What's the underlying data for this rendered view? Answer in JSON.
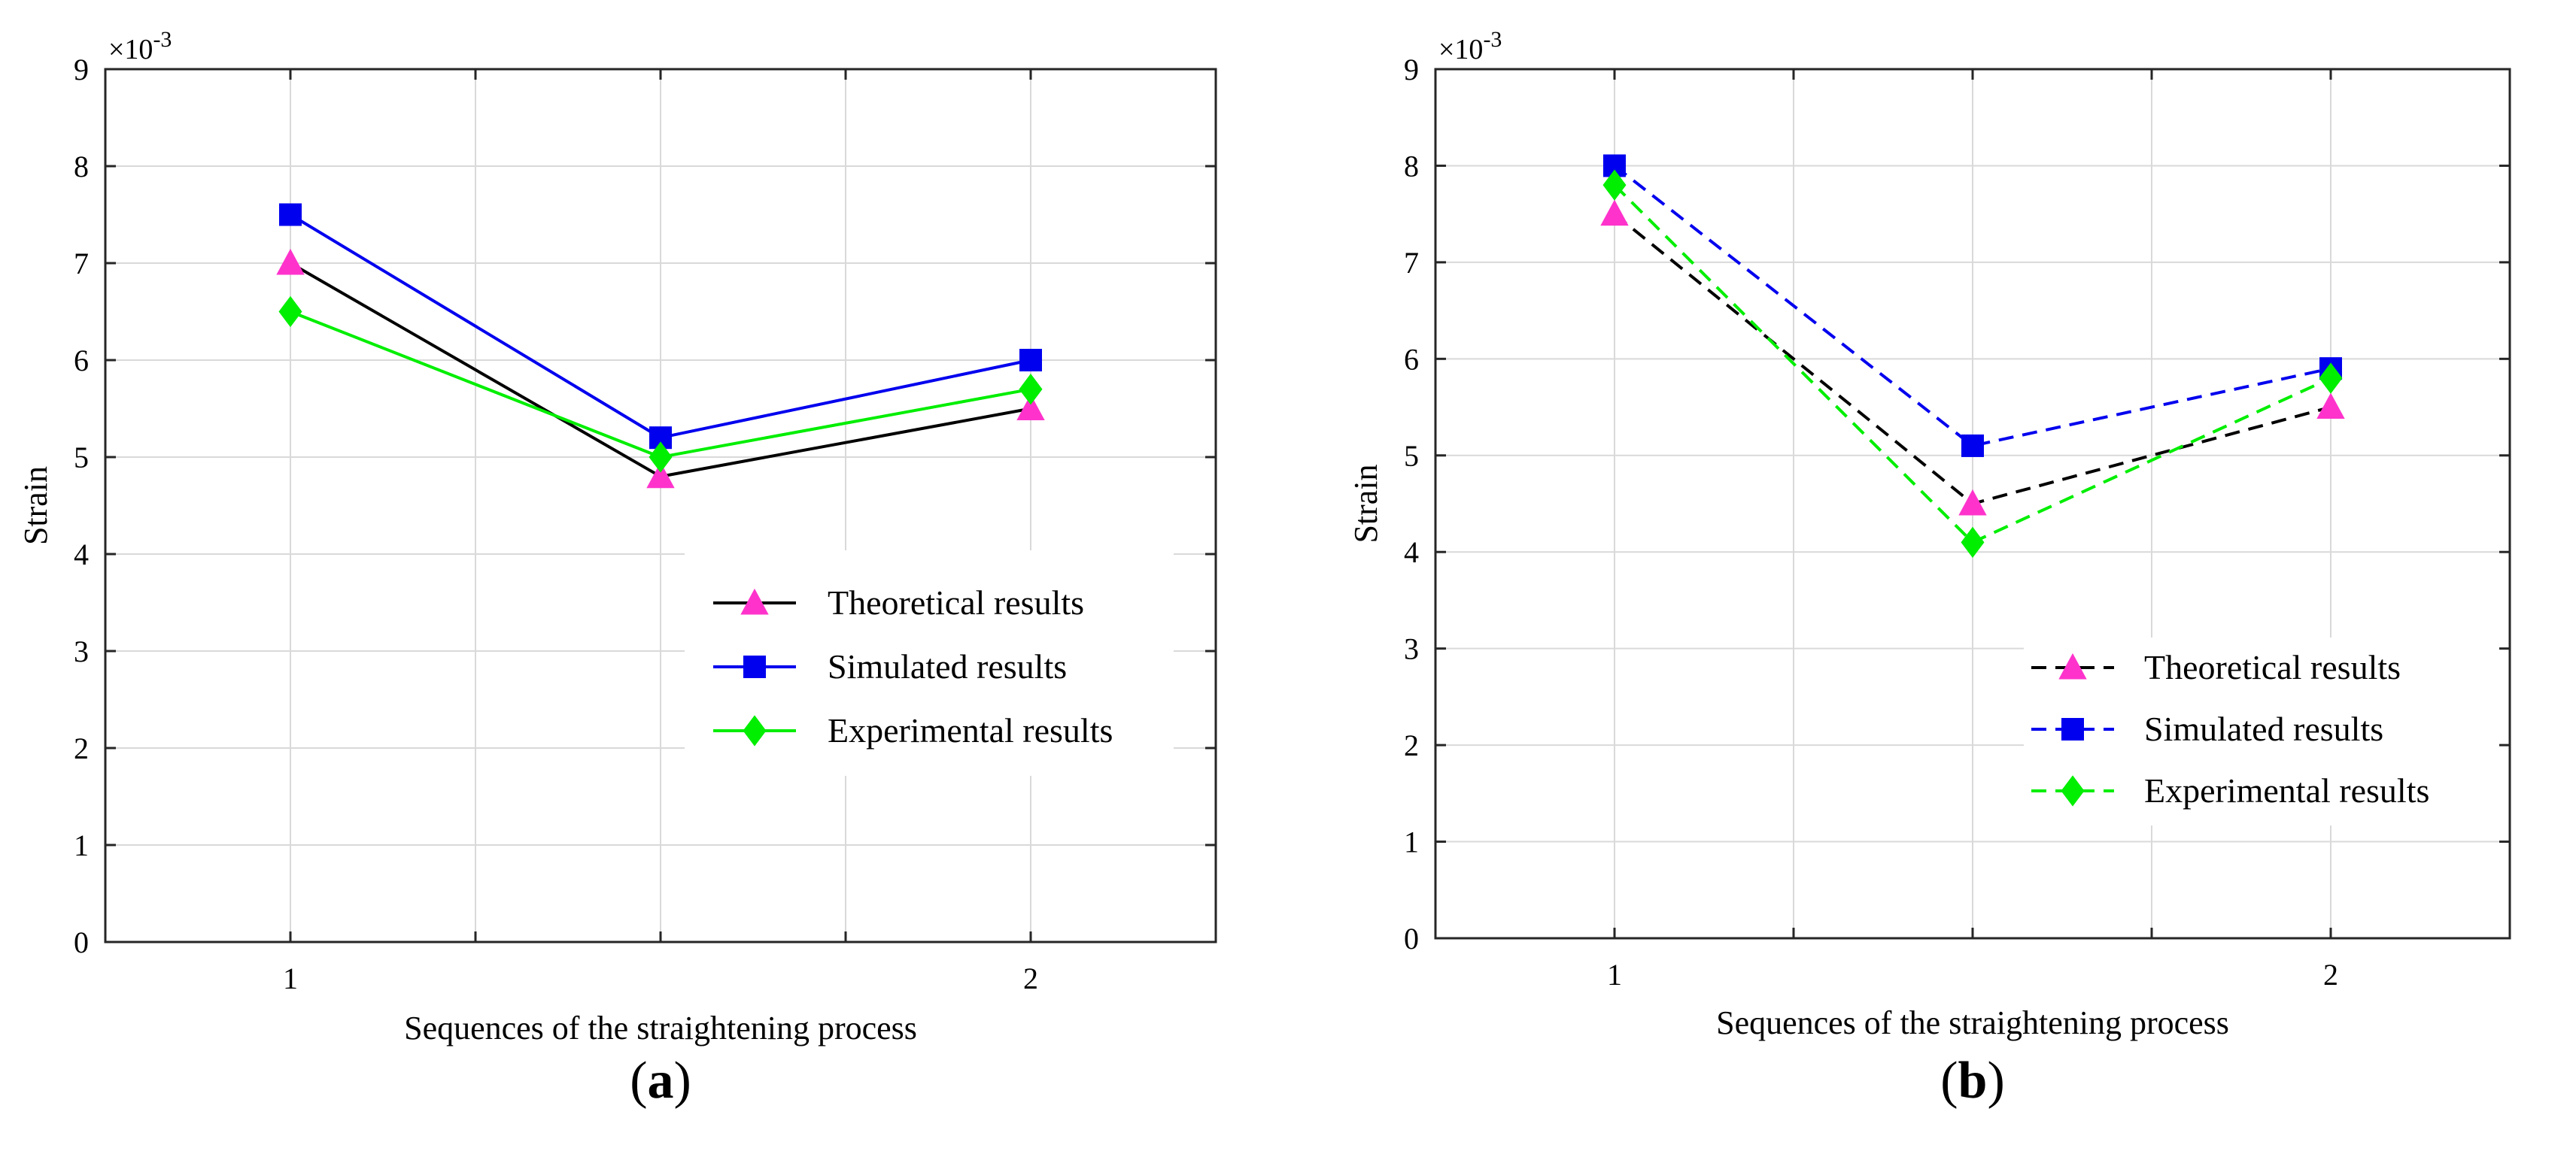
{
  "chart_data": [
    {
      "type": "line",
      "panel_label": "a",
      "title": "",
      "xlabel": "Sequences of the straightening process",
      "ylabel": "Strain",
      "y_exponent_label": "×10",
      "y_exponent_power": "-3",
      "x": [
        1,
        1.5,
        2
      ],
      "xlim": [
        0.75,
        2.25
      ],
      "ylim": [
        0,
        9
      ],
      "x_ticks": [
        1,
        1.25,
        1.5,
        1.75,
        2
      ],
      "x_tick_labels": [
        "1",
        "",
        "",
        "",
        "2"
      ],
      "y_ticks": [
        0,
        1,
        2,
        3,
        4,
        5,
        6,
        7,
        8,
        9
      ],
      "y_tick_labels": [
        "0",
        "1",
        "2",
        "3",
        "4",
        "5",
        "6",
        "7",
        "8",
        "9"
      ],
      "grid": true,
      "legend_position": "bottom-right",
      "series": [
        {
          "name": "Theoretical results",
          "values": [
            7.0,
            4.8,
            5.5
          ],
          "line_color": "#000000",
          "marker_color": "#ff33cc",
          "marker": "triangle",
          "dashed": false
        },
        {
          "name": "Simulated results",
          "values": [
            7.5,
            5.2,
            6.0
          ],
          "line_color": "#0000ee",
          "marker_color": "#0000ee",
          "marker": "square",
          "dashed": false
        },
        {
          "name": "Experimental results",
          "values": [
            6.5,
            5.0,
            5.7
          ],
          "line_color": "#00ee00",
          "marker_color": "#00ee00",
          "marker": "diamond",
          "dashed": false
        }
      ]
    },
    {
      "type": "line",
      "panel_label": "b",
      "title": "",
      "xlabel": "Sequences of the straightening process",
      "ylabel": "Strain",
      "y_exponent_label": "×10",
      "y_exponent_power": "-3",
      "x": [
        1,
        1.5,
        2
      ],
      "xlim": [
        0.75,
        2.25
      ],
      "ylim": [
        0,
        9
      ],
      "x_ticks": [
        1,
        1.25,
        1.5,
        1.75,
        2
      ],
      "x_tick_labels": [
        "1",
        "",
        "",
        "",
        "2"
      ],
      "y_ticks": [
        0,
        1,
        2,
        3,
        4,
        5,
        6,
        7,
        8,
        9
      ],
      "y_tick_labels": [
        "0",
        "1",
        "2",
        "3",
        "4",
        "5",
        "6",
        "7",
        "8",
        "9"
      ],
      "grid": true,
      "legend_position": "bottom-right",
      "series": [
        {
          "name": "Theoretical results",
          "values": [
            7.5,
            4.5,
            5.5
          ],
          "line_color": "#000000",
          "marker_color": "#ff33cc",
          "marker": "triangle",
          "dashed": true
        },
        {
          "name": "Simulated results",
          "values": [
            8.0,
            5.1,
            5.9
          ],
          "line_color": "#0000ee",
          "marker_color": "#0000ee",
          "marker": "square",
          "dashed": true
        },
        {
          "name": "Experimental results",
          "values": [
            7.8,
            4.1,
            5.8
          ],
          "line_color": "#00ee00",
          "marker_color": "#00ee00",
          "marker": "diamond",
          "dashed": true
        }
      ]
    }
  ]
}
